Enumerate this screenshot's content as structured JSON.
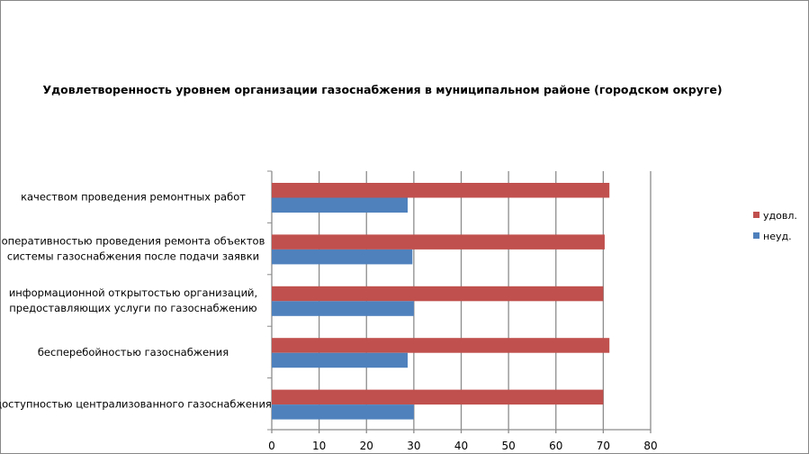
{
  "chart_data": {
    "type": "bar",
    "orientation": "horizontal",
    "title": "Удовлетворенность уровнем организации газоснабжения в муниципальном районе (городском округе)",
    "categories": [
      [
        "качеством проведения ремонтных работ"
      ],
      [
        "оперативностью проведения ремонта объектов",
        "системы газоснабжения после подачи заявки"
      ],
      [
        "информационной открытостью организаций,",
        "предоставляющих услуги по газоснабжению"
      ],
      [
        "бесперебойностью  газоснабжения"
      ],
      [
        "доступностью централизованного газоснабжения"
      ]
    ],
    "series": [
      {
        "name": "удовл.",
        "color": "#C0504D",
        "values": [
          71.3,
          70.3,
          70.0,
          71.3,
          70.0
        ]
      },
      {
        "name": "неуд.",
        "color": "#4F81BD",
        "values": [
          28.7,
          29.7,
          30.0,
          28.7,
          30.0
        ]
      }
    ],
    "xlim": [
      0,
      80
    ],
    "xticks": [
      0,
      10,
      20,
      30,
      40,
      50,
      60,
      70,
      80
    ],
    "grid": true,
    "legend_position": "right"
  }
}
